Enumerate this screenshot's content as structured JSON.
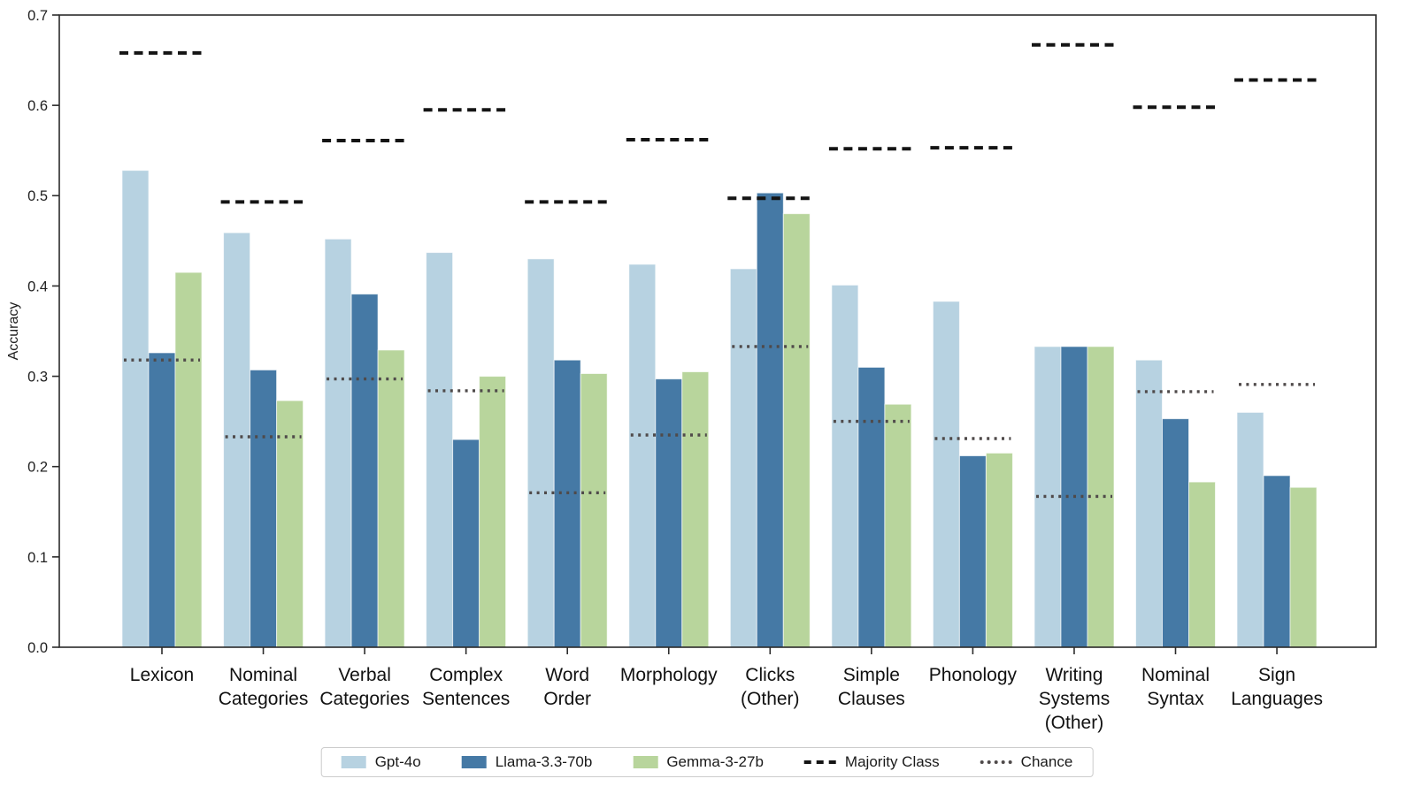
{
  "chart_data": {
    "type": "bar",
    "title": "",
    "xlabel": "",
    "ylabel": "Accuracy",
    "ylim": [
      0.0,
      0.7
    ],
    "ytick_labels": [
      "0.0",
      "0.1",
      "0.2",
      "0.3",
      "0.4",
      "0.5",
      "0.6",
      "0.7"
    ],
    "grid": false,
    "legend_position": "bottom-center",
    "categories": [
      "Lexicon",
      "Nominal Categories",
      "Verbal Categories",
      "Complex Sentences",
      "Word Order",
      "Morphology",
      "Clicks (Other)",
      "Simple Clauses",
      "Phonology",
      "Writing Systems (Other)",
      "Nominal Syntax",
      "Sign Languages"
    ],
    "category_label_lines": [
      [
        "Lexicon"
      ],
      [
        "Nominal",
        "Categories"
      ],
      [
        "Verbal",
        "Categories"
      ],
      [
        "Complex",
        "Sentences"
      ],
      [
        "Word",
        "Order"
      ],
      [
        "Morphology"
      ],
      [
        "Clicks",
        "(Other)"
      ],
      [
        "Simple",
        "Clauses"
      ],
      [
        "Phonology"
      ],
      [
        "Writing",
        "Systems",
        "(Other)"
      ],
      [
        "Nominal",
        "Syntax"
      ],
      [
        "Sign",
        "Languages"
      ]
    ],
    "series": [
      {
        "name": "Gpt-4o",
        "color": "#b7d2e1",
        "values": [
          0.528,
          0.459,
          0.452,
          0.437,
          0.43,
          0.424,
          0.419,
          0.401,
          0.383,
          0.333,
          0.318,
          0.26
        ]
      },
      {
        "name": "Llama-3.3-70b",
        "color": "#4579a5",
        "values": [
          0.326,
          0.307,
          0.391,
          0.23,
          0.318,
          0.297,
          0.503,
          0.31,
          0.212,
          0.333,
          0.253,
          0.19
        ]
      },
      {
        "name": "Gemma-3-27b",
        "color": "#b8d59c",
        "values": [
          0.415,
          0.273,
          0.329,
          0.3,
          0.303,
          0.305,
          0.48,
          0.269,
          0.215,
          0.333,
          0.183,
          0.177
        ]
      }
    ],
    "reference_lines": [
      {
        "name": "Majority Class",
        "style": "dashed",
        "color": "#141414",
        "values": [
          0.658,
          0.493,
          0.561,
          0.595,
          0.493,
          0.562,
          0.497,
          0.552,
          0.553,
          0.667,
          0.598,
          0.628
        ]
      },
      {
        "name": "Chance",
        "style": "dotted",
        "color": "#4f4a4a",
        "values": [
          0.318,
          0.233,
          0.297,
          0.284,
          0.171,
          0.235,
          0.333,
          0.25,
          0.231,
          0.167,
          0.283,
          0.291
        ]
      }
    ]
  },
  "legend": {
    "items": [
      {
        "label": "Gpt-4o",
        "swatch": "rect",
        "color": "#b7d2e1"
      },
      {
        "label": "Llama-3.3-70b",
        "swatch": "rect",
        "color": "#4579a5"
      },
      {
        "label": "Gemma-3-27b",
        "swatch": "rect",
        "color": "#b8d59c"
      },
      {
        "label": "Majority Class",
        "swatch": "dashed-line",
        "color": "#141414"
      },
      {
        "label": "Chance",
        "swatch": "dotted-line",
        "color": "#4f4a4a"
      }
    ]
  },
  "axes": {
    "ylabel": "Accuracy",
    "spine_color": "#2b2b2b",
    "tick_label_color": "#1f1f1f"
  }
}
